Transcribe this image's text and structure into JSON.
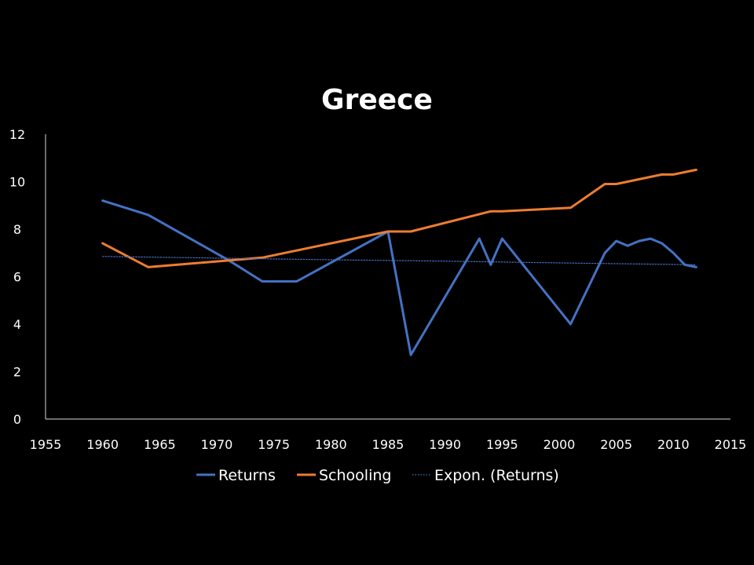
{
  "chart_data": {
    "type": "line",
    "title": "Greece",
    "xlim": [
      1955,
      2015
    ],
    "ylim": [
      0,
      12
    ],
    "x_ticks": [
      "1955",
      "1960",
      "1965",
      "1970",
      "1975",
      "1980",
      "1985",
      "1990",
      "1995",
      "2000",
      "2005",
      "2010",
      "2015"
    ],
    "y_ticks": [
      "0",
      "2",
      "4",
      "6",
      "8",
      "10",
      "12"
    ],
    "grid": false,
    "legend_position": "bottom",
    "series": [
      {
        "name": "Returns",
        "color": "#4472C4",
        "style": "solid",
        "points": [
          [
            1960,
            9.2
          ],
          [
            1964,
            8.6
          ],
          [
            1971,
            6.7
          ],
          [
            1974,
            5.8
          ],
          [
            1977,
            5.8
          ],
          [
            1985,
            7.9
          ],
          [
            1987,
            2.7
          ],
          [
            1993,
            7.6
          ],
          [
            1994,
            6.5
          ],
          [
            1995,
            7.6
          ],
          [
            2001,
            4.0
          ],
          [
            2004,
            7.0
          ],
          [
            2005,
            7.5
          ],
          [
            2006,
            7.3
          ],
          [
            2007,
            7.5
          ],
          [
            2008,
            7.6
          ],
          [
            2009,
            7.4
          ],
          [
            2010,
            7.0
          ],
          [
            2011,
            6.5
          ],
          [
            2012,
            6.4
          ]
        ]
      },
      {
        "name": "Schooling",
        "color": "#ED7D31",
        "style": "solid",
        "points": [
          [
            1960,
            7.4
          ],
          [
            1964,
            6.4
          ],
          [
            1974,
            6.8
          ],
          [
            1977,
            7.1
          ],
          [
            1985,
            7.9
          ],
          [
            1987,
            7.9
          ],
          [
            1994,
            8.75
          ],
          [
            1995,
            8.75
          ],
          [
            2001,
            8.9
          ],
          [
            2004,
            9.9
          ],
          [
            2005,
            9.9
          ],
          [
            2008,
            10.2
          ],
          [
            2009,
            10.3
          ],
          [
            2010,
            10.3
          ],
          [
            2012,
            10.5
          ]
        ]
      },
      {
        "name": "Expon. (Returns)",
        "color": "#4472C4",
        "style": "dotted",
        "points": [
          [
            1960,
            6.85
          ],
          [
            1970,
            6.78
          ],
          [
            1980,
            6.71
          ],
          [
            1990,
            6.65
          ],
          [
            2000,
            6.58
          ],
          [
            2012,
            6.5
          ]
        ]
      }
    ]
  }
}
